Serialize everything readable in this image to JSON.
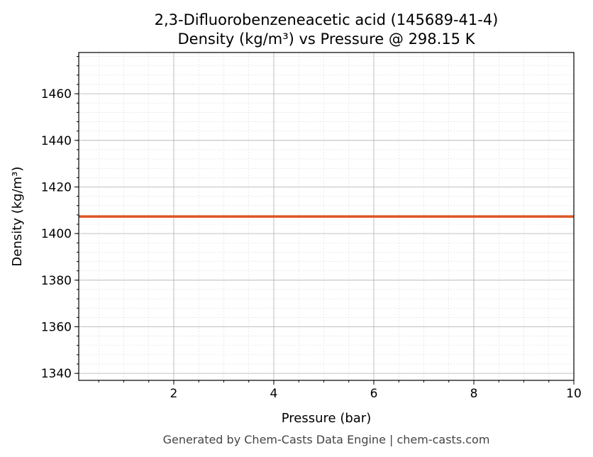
{
  "chart_data": {
    "type": "line",
    "title": "2,3-Difluorobenzeneacetic acid (145689-41-4)",
    "subtitle": "Density (kg/m³) vs Pressure @ 298.15 K",
    "xlabel": "Pressure (bar)",
    "ylabel": "Density (kg/m³)",
    "xlim": [
      0.1,
      10
    ],
    "ylim": [
      1337,
      1477.7
    ],
    "xticks": [
      2,
      4,
      6,
      8,
      10
    ],
    "yticks": [
      1340,
      1360,
      1380,
      1400,
      1420,
      1440,
      1460
    ],
    "grid": true,
    "series": [
      {
        "x": [
          0.1,
          10
        ],
        "y": [
          1407.3,
          1407.3
        ],
        "color": "#dd5522"
      }
    ]
  },
  "footer": "Generated by Chem-Casts Data Engine | chem-casts.com"
}
